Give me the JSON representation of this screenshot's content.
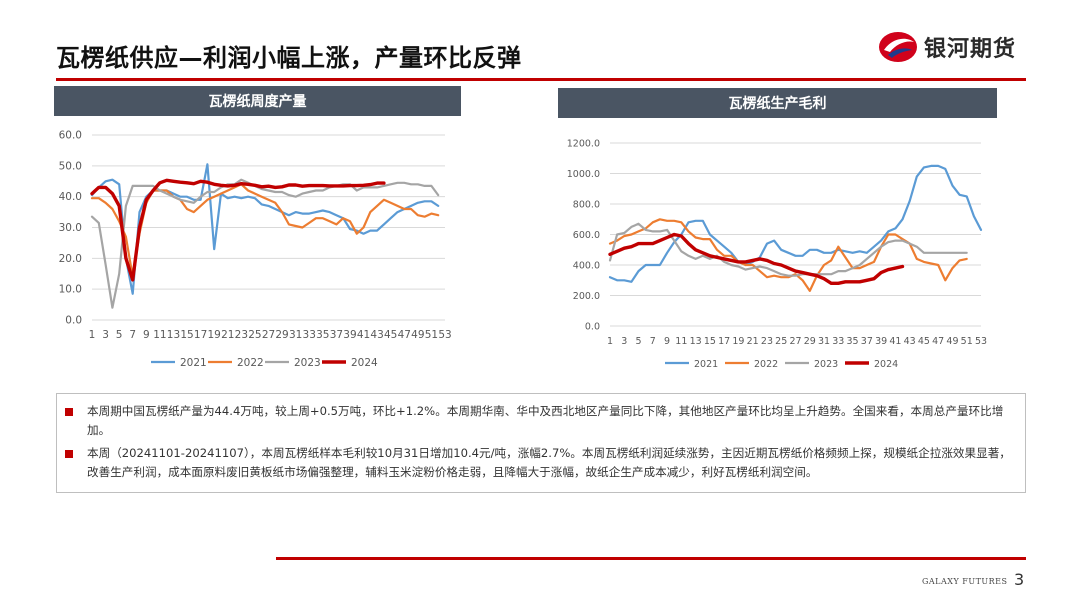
{
  "page": {
    "title": "瓦楞纸供应—利润小幅上涨，产量环比反弹",
    "logo_text": "银河期货",
    "footer_brand": "GALAXY FUTURES",
    "page_number": "3",
    "accent_color": "#c00000"
  },
  "notes": [
    "本周期中国瓦楞纸产量为44.4万吨，较上周+0.5万吨，环比+1.2%。本周期华南、华中及西北地区产量同比下降，其他地区产量环比均呈上升趋势。全国来看，本周总产量环比增加。",
    "本周（20241101-20241107），本周瓦楞纸样本毛利较10月31日增加10.4元/吨，涨幅2.7%。本周瓦楞纸利润延续涨势，主因近期瓦楞纸价格频频上探，规模纸企拉涨效果显著，改善生产利润，成本面原料废旧黄板纸市场偏强整理，辅料玉米淀粉价格走弱，且降幅大于涨幅，故纸企生产成本减少，利好瓦楞纸利润空间。"
  ],
  "chart_data": [
    {
      "type": "line",
      "title": "瓦楞纸周度产量",
      "ylim": [
        0,
        60
      ],
      "yticks": [
        "0.0",
        "10.0",
        "20.0",
        "30.0",
        "40.0",
        "50.0",
        "60.0"
      ],
      "xticks": [
        "1",
        "3",
        "5",
        "7",
        "9",
        "11",
        "13",
        "15",
        "17",
        "19",
        "21",
        "23",
        "25",
        "27",
        "29",
        "31",
        "33",
        "35",
        "37",
        "39",
        "41",
        "43",
        "45",
        "47",
        "49",
        "51",
        "53"
      ],
      "grid": true,
      "legend_position": "bottom",
      "series": [
        {
          "name": "2021",
          "color": "#5b9bd5",
          "width": 2.2,
          "values": [
            40.5,
            43,
            45,
            45.5,
            44,
            20,
            8.5,
            35,
            40,
            42,
            42,
            42,
            41,
            40,
            40,
            39,
            39,
            50.5,
            23,
            41,
            39.5,
            40,
            39.5,
            40,
            39.5,
            37.5,
            37,
            36,
            35,
            34,
            35,
            34.5,
            34.5,
            35,
            35.5,
            35,
            34,
            33,
            29.5,
            29,
            28,
            29,
            29,
            31,
            33,
            35,
            36,
            37,
            38,
            38.5,
            38.5,
            37
          ]
        },
        {
          "name": "2022",
          "color": "#ed7d31",
          "width": 2.2,
          "values": [
            39.5,
            39.5,
            38,
            36,
            32,
            27,
            14,
            28,
            38,
            42,
            42,
            42,
            40,
            39,
            36,
            35,
            37,
            39,
            40,
            41,
            42,
            43,
            44,
            42,
            41,
            40,
            39,
            38,
            35,
            31,
            30.5,
            30,
            31.5,
            33,
            33,
            32,
            31,
            33,
            32,
            28,
            30,
            35,
            37,
            39,
            38,
            37,
            36,
            36,
            34,
            33.5,
            34.5,
            34
          ]
        },
        {
          "name": "2023",
          "color": "#a5a5a5",
          "width": 2.2,
          "values": [
            33.5,
            31.5,
            18,
            4,
            15,
            37,
            43.5,
            43.5,
            43.5,
            43.5,
            42,
            41,
            40,
            39,
            38.5,
            38,
            40,
            41.5,
            41.5,
            43,
            44,
            44,
            45.5,
            44.5,
            43.5,
            42.5,
            42,
            41.5,
            41.5,
            40.5,
            40,
            41,
            41.5,
            42,
            42,
            43,
            43.5,
            44,
            44,
            42,
            43,
            43,
            43,
            43.5,
            44,
            44.5,
            44.5,
            44,
            44,
            43.5,
            43.5,
            40.5
          ]
        },
        {
          "name": "2024",
          "color": "#c00000",
          "width": 3.4,
          "values": [
            41,
            43,
            43,
            41,
            37,
            20,
            13,
            30,
            39,
            42,
            44.5,
            45.3,
            45,
            44.7,
            44.5,
            44.2,
            45,
            44.7,
            44,
            43.7,
            43.5,
            43.7,
            44.2,
            44,
            43.7,
            43.2,
            43.4,
            43,
            43.2,
            43.8,
            43.8,
            43.4,
            43.6,
            43.6,
            43.6,
            43.5,
            43.5,
            43.5,
            43.6,
            43.6,
            43.7,
            43.9,
            44.4,
            44.4
          ]
        }
      ]
    },
    {
      "type": "line",
      "title": "瓦楞纸生产毛利",
      "ylim": [
        0,
        1200
      ],
      "yticks": [
        "0.0",
        "200.0",
        "400.0",
        "600.0",
        "800.0",
        "1000.0",
        "1200.0"
      ],
      "xticks": [
        "1",
        "3",
        "5",
        "7",
        "9",
        "11",
        "13",
        "15",
        "17",
        "19",
        "21",
        "23",
        "25",
        "27",
        "29",
        "31",
        "33",
        "35",
        "37",
        "39",
        "41",
        "43",
        "45",
        "47",
        "49",
        "51",
        "53"
      ],
      "grid": true,
      "legend_position": "bottom",
      "series": [
        {
          "name": "2021",
          "color": "#5b9bd5",
          "width": 2.2,
          "values": [
            320,
            300,
            300,
            290,
            360,
            400,
            400,
            400,
            480,
            550,
            600,
            680,
            690,
            690,
            600,
            560,
            520,
            480,
            420,
            400,
            420,
            450,
            540,
            560,
            500,
            480,
            460,
            460,
            500,
            500,
            480,
            480,
            500,
            490,
            480,
            490,
            480,
            520,
            560,
            620,
            640,
            700,
            820,
            980,
            1040,
            1050,
            1050,
            1030,
            920,
            860,
            850,
            720,
            630
          ]
        },
        {
          "name": "2022",
          "color": "#ed7d31",
          "width": 2.2,
          "values": [
            540,
            560,
            590,
            600,
            620,
            640,
            680,
            700,
            690,
            690,
            680,
            620,
            580,
            570,
            570,
            500,
            460,
            460,
            420,
            400,
            400,
            360,
            320,
            330,
            320,
            320,
            340,
            300,
            230,
            330,
            400,
            430,
            520,
            450,
            380,
            380,
            400,
            420,
            520,
            600,
            600,
            570,
            540,
            440,
            420,
            410,
            400,
            300,
            380,
            430,
            440
          ]
        },
        {
          "name": "2023",
          "color": "#a5a5a5",
          "width": 2.2,
          "values": [
            430,
            600,
            610,
            650,
            670,
            630,
            620,
            620,
            630,
            560,
            490,
            460,
            440,
            460,
            440,
            460,
            420,
            400,
            390,
            370,
            380,
            390,
            380,
            360,
            340,
            330,
            330,
            340,
            340,
            340,
            340,
            340,
            360,
            360,
            380,
            400,
            440,
            480,
            520,
            550,
            560,
            560,
            540,
            520,
            480,
            480,
            480,
            480,
            480,
            480,
            480
          ]
        },
        {
          "name": "2024",
          "color": "#c00000",
          "width": 3.4,
          "values": [
            470,
            490,
            510,
            520,
            540,
            540,
            540,
            560,
            580,
            600,
            590,
            540,
            500,
            480,
            460,
            450,
            440,
            430,
            420,
            420,
            430,
            440,
            430,
            410,
            400,
            380,
            360,
            350,
            340,
            330,
            310,
            280,
            280,
            290,
            290,
            290,
            300,
            310,
            350,
            370,
            380,
            390
          ]
        }
      ]
    }
  ]
}
